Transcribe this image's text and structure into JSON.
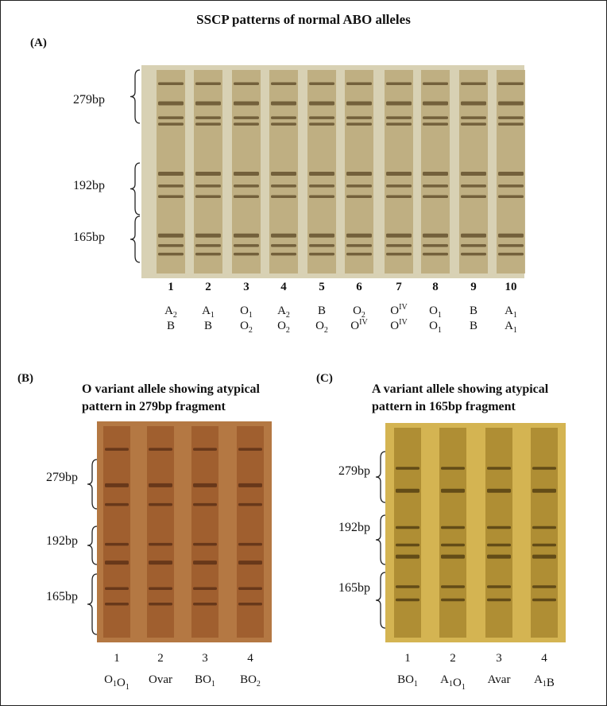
{
  "title": "SSCP patterns of normal ABO alleles",
  "panels": [
    {
      "label": "(A)",
      "fragments": [
        "279bp",
        "192bp",
        "165bp"
      ],
      "lanes": [
        {
          "number": "1",
          "genotype": [
            [
              {
                "text": "A",
                "sub": "2"
              }
            ],
            [
              {
                "text": "B"
              }
            ]
          ]
        },
        {
          "number": "2",
          "genotype": [
            [
              {
                "text": "A",
                "sub": "1"
              }
            ],
            [
              {
                "text": "B"
              }
            ]
          ]
        },
        {
          "number": "3",
          "genotype": [
            [
              {
                "text": "O",
                "sub": "1"
              }
            ],
            [
              {
                "text": "O",
                "sub": "2"
              }
            ]
          ]
        },
        {
          "number": "4",
          "genotype": [
            [
              {
                "text": "A",
                "sub": "2"
              }
            ],
            [
              {
                "text": "O",
                "sub": "2"
              }
            ]
          ]
        },
        {
          "number": "5",
          "genotype": [
            [
              {
                "text": "B"
              }
            ],
            [
              {
                "text": "O",
                "sub": "2"
              }
            ]
          ]
        },
        {
          "number": "6",
          "genotype": [
            [
              {
                "text": "O",
                "sub": "2"
              }
            ],
            [
              {
                "text": "O",
                "sup": "IV"
              }
            ]
          ]
        },
        {
          "number": "7",
          "genotype": [
            [
              {
                "text": "O",
                "sup": "IV"
              }
            ],
            [
              {
                "text": "O",
                "sup": "IV"
              }
            ]
          ]
        },
        {
          "number": "8",
          "genotype": [
            [
              {
                "text": "O",
                "sub": "1"
              }
            ],
            [
              {
                "text": "O",
                "sub": "1"
              }
            ]
          ]
        },
        {
          "number": "9",
          "genotype": [
            [
              {
                "text": "B"
              }
            ],
            [
              {
                "text": "B"
              }
            ]
          ]
        },
        {
          "number": "10",
          "genotype": [
            [
              {
                "text": "A",
                "sub": "1"
              }
            ],
            [
              {
                "text": "A",
                "sub": "1"
              }
            ]
          ]
        }
      ]
    },
    {
      "label": "(B)",
      "title": [
        "O variant allele showing atypical",
        "pattern in 279bp fragment"
      ],
      "fragments": [
        "279bp",
        "192bp",
        "165bp"
      ],
      "lanes": [
        {
          "number": "1",
          "genotype": [
            [
              {
                "text": "O",
                "sub": "1"
              },
              {
                "text": "O",
                "sub": "1"
              }
            ]
          ]
        },
        {
          "number": "2",
          "genotype": [
            [
              {
                "text": "Ovar"
              }
            ]
          ]
        },
        {
          "number": "3",
          "genotype": [
            [
              {
                "text": "BO",
                "sub": "1"
              }
            ]
          ]
        },
        {
          "number": "4",
          "genotype": [
            [
              {
                "text": "BO",
                "sub": "2"
              }
            ]
          ]
        }
      ]
    },
    {
      "label": "(C)",
      "title": [
        "A variant allele showing atypical",
        "pattern in 165bp fragment"
      ],
      "fragments": [
        "279bp",
        "192bp",
        "165bp"
      ],
      "lanes": [
        {
          "number": "1",
          "genotype": [
            [
              {
                "text": "BO",
                "sub": "1"
              }
            ]
          ]
        },
        {
          "number": "2",
          "genotype": [
            [
              {
                "text": "A",
                "sub": "1"
              },
              {
                "text": "O",
                "sub": "1"
              }
            ]
          ]
        },
        {
          "number": "3",
          "genotype": [
            [
              {
                "text": "Avar"
              }
            ]
          ]
        },
        {
          "number": "4",
          "genotype": [
            [
              {
                "text": "A",
                "sub": "1"
              },
              {
                "text": "B"
              }
            ]
          ]
        }
      ]
    }
  ]
}
